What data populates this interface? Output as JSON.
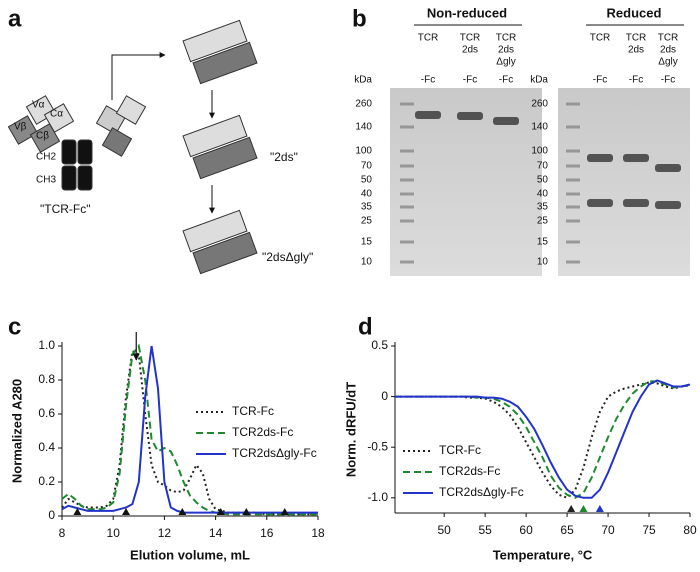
{
  "diagram": {
    "label": "a",
    "domains": [
      "Vα",
      "Cα",
      "Vβ",
      "Cβ",
      "CH2",
      "CH3"
    ],
    "names": [
      "\"TCR-Fc\"",
      "\"2ds\"",
      "\"2dsΔgly\""
    ]
  },
  "gel": {
    "label": "b",
    "kda": "kDa",
    "ladder": [
      260,
      140,
      100,
      70,
      50,
      40,
      35,
      25,
      15,
      10
    ],
    "groups": [
      {
        "title": "Non-reduced",
        "lanes": [
          {
            "lines": [
              "TCR"
            ],
            "suffix": "-Fc"
          },
          {
            "lines": [
              "TCR",
              "2ds"
            ],
            "suffix": "-Fc"
          },
          {
            "lines": [
              "TCR",
              "2ds",
              "Δgly"
            ],
            "suffix": "-Fc"
          }
        ]
      },
      {
        "title": "Reduced",
        "lanes": [
          {
            "lines": [
              "TCR"
            ],
            "suffix": "-Fc"
          },
          {
            "lines": [
              "TCR",
              "2ds"
            ],
            "suffix": "-Fc"
          },
          {
            "lines": [
              "TCR",
              "2ds",
              "Δgly"
            ],
            "suffix": "-Fc"
          }
        ]
      }
    ]
  },
  "chart_data": [
    {
      "type": "line",
      "label": "c",
      "xlabel": "Elution volume, mL",
      "ylabel": "Normalized A280",
      "x": [
        8,
        8.25,
        8.5,
        8.75,
        9,
        9.25,
        9.5,
        9.75,
        10,
        10.25,
        10.5,
        10.75,
        11,
        11.25,
        11.5,
        11.75,
        12,
        12.25,
        12.5,
        12.75,
        13,
        13.25,
        13.5,
        13.75,
        14,
        14.5,
        15,
        15.5,
        16,
        16.5,
        17,
        17.5,
        18
      ],
      "series": [
        {
          "name": "TCR-Fc",
          "color": "#222222",
          "dash": "dotted",
          "values": [
            0.05,
            0.1,
            0.08,
            0.06,
            0.05,
            0.05,
            0.05,
            0.06,
            0.1,
            0.3,
            0.7,
            0.97,
            0.95,
            0.6,
            0.3,
            0.2,
            0.18,
            0.15,
            0.14,
            0.15,
            0.22,
            0.3,
            0.25,
            0.1,
            0.04,
            0.02,
            0.02,
            0.02,
            0.01,
            0.01,
            0.01,
            0.01,
            0.01
          ]
        },
        {
          "name": "TCR2ds-Fc",
          "color": "#1e8a2e",
          "dash": "dashed",
          "values": [
            0.1,
            0.13,
            0.1,
            0.06,
            0.04,
            0.04,
            0.04,
            0.05,
            0.08,
            0.25,
            0.65,
            0.95,
            1.0,
            0.8,
            0.45,
            0.38,
            0.4,
            0.38,
            0.3,
            0.2,
            0.12,
            0.08,
            0.05,
            0.03,
            0.02,
            0.01,
            0.01,
            0.01,
            0.01,
            0.01,
            0.01,
            0.01,
            0.01
          ]
        },
        {
          "name": "TCR2dsΔgly-Fc",
          "color": "#2233cc",
          "dash": "solid",
          "values": [
            0.04,
            0.06,
            0.05,
            0.04,
            0.03,
            0.03,
            0.03,
            0.03,
            0.03,
            0.04,
            0.05,
            0.07,
            0.2,
            0.7,
            1.0,
            0.75,
            0.2,
            0.05,
            0.03,
            0.02,
            0.02,
            0.02,
            0.02,
            0.02,
            0.02,
            0.02,
            0.02,
            0.02,
            0.02,
            0.02,
            0.02,
            0.02,
            0.02
          ]
        }
      ],
      "xlim": [
        8,
        18
      ],
      "xticks": [
        8,
        10,
        12,
        14,
        16,
        18
      ],
      "ylim": [
        0,
        1
      ],
      "yticks": [
        0,
        0.2,
        0.4,
        0.6,
        0.8,
        {
          "value": 1,
          "label": "1.0"
        }
      ],
      "marker_x": [
        8.6,
        10.5,
        12.7,
        14.2,
        15.2,
        16.7
      ],
      "arrow_x": 10.9,
      "legend": "upper right"
    },
    {
      "type": "line",
      "label": "d",
      "xlabel": "Temperature, °C",
      "ylabel": "Norm. dRFU/dT",
      "x": [
        44,
        45,
        46,
        47,
        48,
        49,
        50,
        51,
        52,
        53,
        54,
        55,
        56,
        57,
        58,
        59,
        60,
        61,
        62,
        63,
        64,
        65,
        66,
        67,
        68,
        69,
        70,
        71,
        72,
        73,
        74,
        75,
        76,
        77,
        78,
        79,
        80
      ],
      "series": [
        {
          "name": "TCR-Fc",
          "color": "#222222",
          "dash": "dotted",
          "values": [
            0,
            0,
            0,
            0,
            0,
            0,
            0,
            0,
            0,
            -0.01,
            -0.01,
            -0.02,
            -0.05,
            -0.1,
            -0.18,
            -0.3,
            -0.45,
            -0.6,
            -0.75,
            -0.88,
            -0.97,
            -1.0,
            -0.92,
            -0.7,
            -0.4,
            -0.15,
            0.0,
            0.05,
            0.08,
            0.1,
            0.12,
            0.14,
            0.13,
            0.1,
            0.08,
            0.1,
            0.11
          ]
        },
        {
          "name": "TCR2ds-Fc",
          "color": "#1e8a2e",
          "dash": "dashed",
          "values": [
            0,
            0,
            0,
            0,
            0,
            0,
            0,
            0,
            0,
            0,
            -0.01,
            -0.01,
            -0.02,
            -0.05,
            -0.1,
            -0.18,
            -0.3,
            -0.45,
            -0.6,
            -0.78,
            -0.9,
            -0.97,
            -1.0,
            -0.95,
            -0.8,
            -0.6,
            -0.4,
            -0.22,
            -0.08,
            0.03,
            0.1,
            0.15,
            0.15,
            0.12,
            0.09,
            0.1,
            0.12
          ]
        },
        {
          "name": "TCR2dsΔgly-Fc",
          "color": "#2233cc",
          "dash": "solid",
          "values": [
            0,
            0,
            0,
            0,
            0,
            0,
            0,
            0,
            0,
            0,
            0,
            -0.01,
            -0.01,
            -0.02,
            -0.05,
            -0.1,
            -0.2,
            -0.32,
            -0.48,
            -0.65,
            -0.8,
            -0.92,
            -0.98,
            -1.0,
            -1.0,
            -0.92,
            -0.75,
            -0.55,
            -0.35,
            -0.15,
            0.0,
            0.12,
            0.16,
            0.13,
            0.1,
            0.1,
            0.12
          ]
        }
      ],
      "xlim": [
        44,
        80
      ],
      "xticks": [
        50,
        55,
        60,
        65,
        70,
        75,
        80
      ],
      "ylim": [
        -1.15,
        0.5
      ],
      "yticks": [
        0.5,
        0,
        -0.5,
        {
          "value": -1,
          "label": "-1.0"
        }
      ],
      "marker_x": [
        65.5,
        67,
        69
      ],
      "marker_colors": [
        "#222222",
        "#1e8a2e",
        "#2233cc"
      ],
      "legend": "lower left"
    }
  ]
}
